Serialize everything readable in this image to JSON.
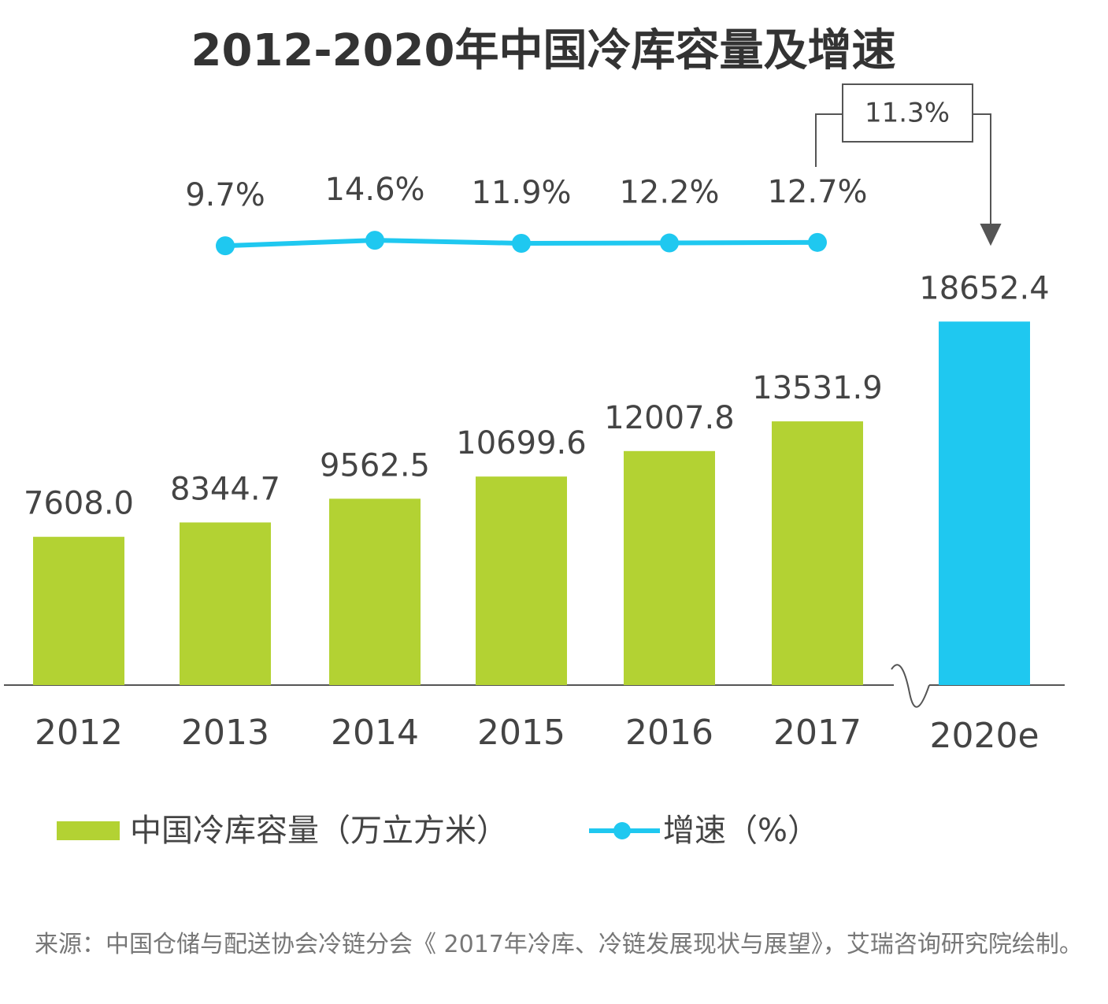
{
  "chart_data": {
    "type": "bar",
    "title": "2012-2020年中国冷库容量及增速",
    "categories": [
      "2012",
      "2013",
      "2014",
      "2015",
      "2016",
      "2017",
      "2020e"
    ],
    "series": [
      {
        "name": "中国冷库容量（万立方米）",
        "type": "bar",
        "color": "#b3d233",
        "values": [
          7608.0,
          8344.7,
          9562.5,
          10699.6,
          12007.8,
          13531.9,
          18652.4
        ],
        "value_labels": [
          "7608.0",
          "8344.7",
          "9562.5",
          "10699.6",
          "12007.8",
          "13531.9",
          "18652.4"
        ],
        "colors": [
          "#b3d233",
          "#b3d233",
          "#b3d233",
          "#b3d233",
          "#b3d233",
          "#b3d233",
          "#1fc8f0"
        ]
      },
      {
        "name": "增速（%）",
        "type": "line",
        "axis": "y2",
        "color": "#1fc8f0",
        "values": [
          null,
          9.7,
          14.6,
          11.9,
          12.2,
          12.7,
          null
        ],
        "value_labels": [
          null,
          "9.7%",
          "14.6%",
          "11.9%",
          "12.2%",
          "12.7%",
          null
        ]
      }
    ],
    "annotation": "11.3%",
    "ylim": [
      0,
      20000
    ],
    "y2lim": [
      0,
      100
    ],
    "axis_break": true,
    "source": "来源：中国仓储与配送协会冷链分会《 2017年冷库、冷链发展现状与展望》，艾瑞咨询研究院绘制。"
  }
}
